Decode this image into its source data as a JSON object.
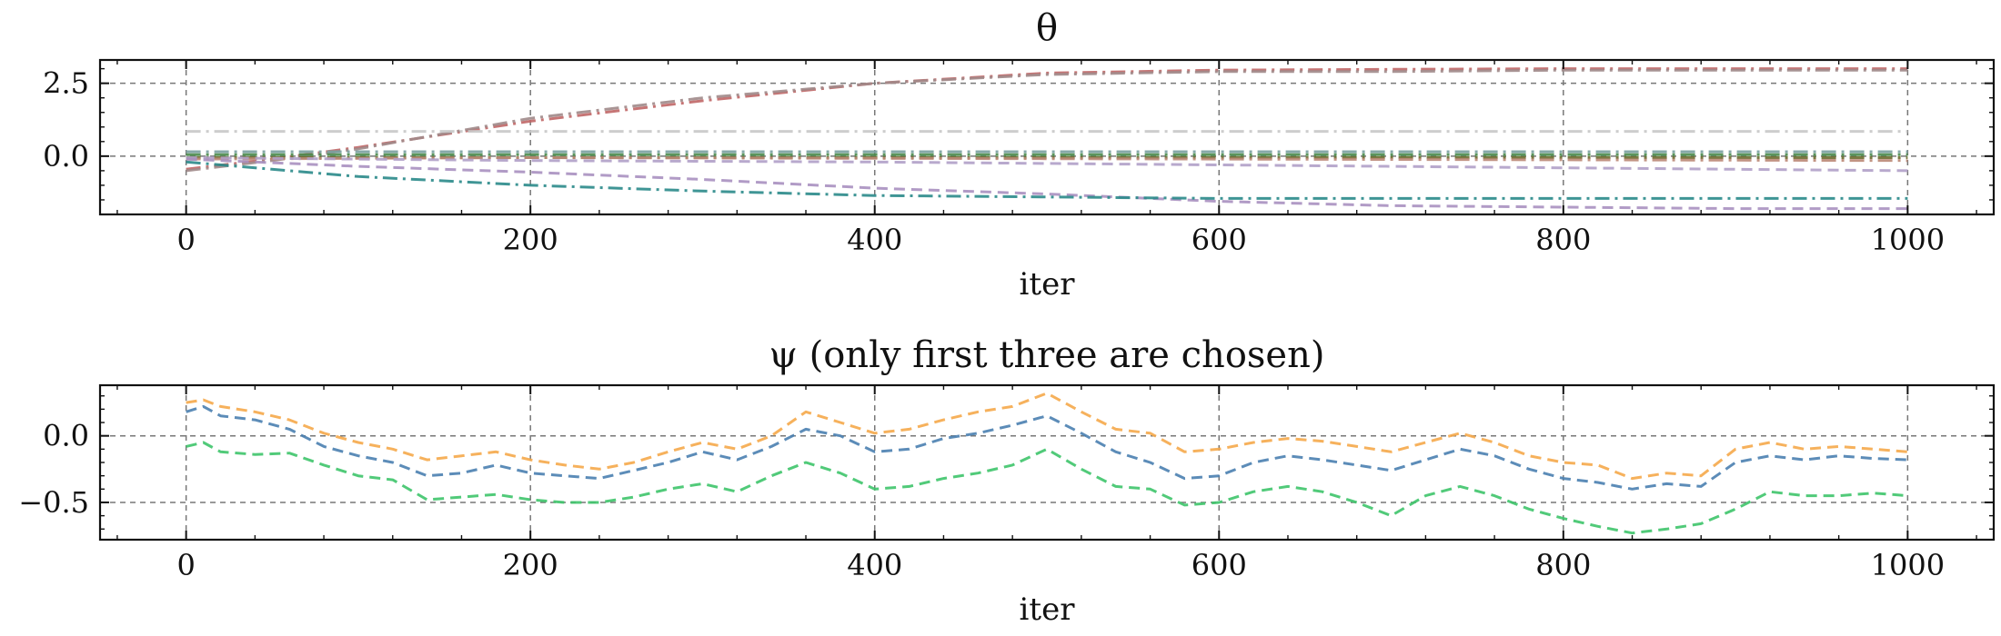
{
  "chart_data": [
    {
      "type": "line",
      "title": "θ",
      "xlabel": "iter",
      "ylabel": "",
      "xlim": [
        -50,
        1050
      ],
      "ylim": [
        -2.0,
        3.3
      ],
      "xticks": [
        0,
        200,
        400,
        600,
        800,
        1000
      ],
      "xtick_labels": [
        "0",
        "200",
        "400",
        "600",
        "800",
        "1000"
      ],
      "yticks": [
        0.0,
        2.5
      ],
      "ytick_labels": [
        "0.0",
        "2.5"
      ],
      "grid": true,
      "legend": "none",
      "series": [
        {
          "color": "#c06666",
          "style": "dashdot",
          "x": [
            0,
            50,
            100,
            200,
            300,
            400,
            500,
            600,
            700,
            800,
            900,
            1000
          ],
          "y": [
            -0.45,
            -0.1,
            0.3,
            1.2,
            1.9,
            2.5,
            2.85,
            2.95,
            2.98,
            3.0,
            3.0,
            3.0
          ]
        },
        {
          "color": "#a08a8a",
          "style": "dashdot",
          "x": [
            0,
            50,
            100,
            200,
            300,
            400,
            500,
            600,
            700,
            800,
            900,
            1000
          ],
          "y": [
            -0.5,
            -0.15,
            0.25,
            1.3,
            2.0,
            2.5,
            2.8,
            2.9,
            2.9,
            2.95,
            2.95,
            2.95
          ]
        },
        {
          "color": "#c8c8c8",
          "style": "dashdot",
          "x": [
            0,
            1000
          ],
          "y": [
            0.85,
            0.85
          ]
        },
        {
          "color": "#7aa0a0",
          "style": "dashdot",
          "x": [
            0,
            1000
          ],
          "y": [
            0.15,
            0.15
          ]
        },
        {
          "color": "#4a8a4a",
          "style": "dashdot",
          "x": [
            0,
            200,
            600,
            1000
          ],
          "y": [
            0.05,
            0.05,
            0.05,
            0.05
          ]
        },
        {
          "color": "#6b6b2f",
          "style": "dashdot",
          "x": [
            0,
            1000
          ],
          "y": [
            -0.05,
            -0.05
          ]
        },
        {
          "color": "#bb8877",
          "style": "dashdot",
          "x": [
            0,
            200,
            600,
            1000
          ],
          "y": [
            -0.1,
            -0.05,
            -0.1,
            -0.15
          ]
        },
        {
          "color": "#b0a0c8",
          "style": "dashed",
          "x": [
            0,
            100,
            200,
            400,
            600,
            800,
            1000
          ],
          "y": [
            -0.05,
            -0.1,
            -0.15,
            -0.2,
            -0.3,
            -0.4,
            -0.5
          ]
        },
        {
          "color": "#a890c0",
          "style": "dashed",
          "x": [
            0,
            100,
            200,
            300,
            400,
            500,
            600,
            700,
            800,
            900,
            1000
          ],
          "y": [
            -0.1,
            -0.35,
            -0.55,
            -0.8,
            -1.1,
            -1.3,
            -1.55,
            -1.7,
            -1.75,
            -1.8,
            -1.8
          ]
        },
        {
          "color": "#2a8a8a",
          "style": "dashdot",
          "x": [
            0,
            100,
            200,
            300,
            400,
            500,
            600,
            700,
            800,
            900,
            1000
          ],
          "y": [
            -0.2,
            -0.7,
            -1.0,
            -1.2,
            -1.35,
            -1.4,
            -1.45,
            -1.45,
            -1.45,
            -1.45,
            -1.45
          ]
        }
      ]
    },
    {
      "type": "line",
      "title": "ψ (only first three are chosen)",
      "xlabel": "iter",
      "ylabel": "",
      "xlim": [
        -50,
        1050
      ],
      "ylim": [
        -0.78,
        0.38
      ],
      "xticks": [
        0,
        200,
        400,
        600,
        800,
        1000
      ],
      "xtick_labels": [
        "0",
        "200",
        "400",
        "600",
        "800",
        "1000"
      ],
      "yticks": [
        -0.5,
        0.0
      ],
      "ytick_labels": [
        "−0.5",
        "0.0"
      ],
      "grid": true,
      "legend": "none",
      "series": [
        {
          "color": "#f5a84a",
          "style": "dashed",
          "x": [
            0,
            10,
            20,
            40,
            60,
            80,
            100,
            120,
            140,
            160,
            180,
            200,
            220,
            240,
            260,
            280,
            300,
            320,
            340,
            360,
            380,
            400,
            420,
            440,
            460,
            480,
            500,
            520,
            540,
            560,
            580,
            600,
            620,
            640,
            660,
            680,
            700,
            720,
            740,
            760,
            780,
            800,
            820,
            840,
            860,
            880,
            900,
            920,
            940,
            960,
            980,
            1000
          ],
          "y": [
            0.25,
            0.27,
            0.22,
            0.18,
            0.12,
            0.02,
            -0.05,
            -0.1,
            -0.18,
            -0.15,
            -0.12,
            -0.18,
            -0.22,
            -0.25,
            -0.2,
            -0.12,
            -0.05,
            -0.1,
            0.0,
            0.18,
            0.1,
            0.02,
            0.05,
            0.12,
            0.18,
            0.22,
            0.32,
            0.18,
            0.05,
            0.02,
            -0.12,
            -0.1,
            -0.05,
            -0.02,
            -0.04,
            -0.08,
            -0.12,
            -0.05,
            0.02,
            -0.05,
            -0.15,
            -0.2,
            -0.22,
            -0.32,
            -0.28,
            -0.3,
            -0.1,
            -0.05,
            -0.1,
            -0.08,
            -0.1,
            -0.12
          ]
        },
        {
          "color": "#4a80b0",
          "style": "dashed",
          "x": [
            0,
            10,
            20,
            40,
            60,
            80,
            100,
            120,
            140,
            160,
            180,
            200,
            220,
            240,
            260,
            280,
            300,
            320,
            340,
            360,
            380,
            400,
            420,
            440,
            460,
            480,
            500,
            520,
            540,
            560,
            580,
            600,
            620,
            640,
            660,
            680,
            700,
            720,
            740,
            760,
            780,
            800,
            820,
            840,
            860,
            880,
            900,
            920,
            940,
            960,
            980,
            1000
          ],
          "y": [
            0.18,
            0.22,
            0.15,
            0.12,
            0.05,
            -0.08,
            -0.15,
            -0.2,
            -0.3,
            -0.28,
            -0.22,
            -0.28,
            -0.3,
            -0.32,
            -0.26,
            -0.2,
            -0.12,
            -0.18,
            -0.08,
            0.05,
            0.0,
            -0.12,
            -0.1,
            -0.02,
            0.02,
            0.08,
            0.15,
            0.02,
            -0.12,
            -0.2,
            -0.32,
            -0.3,
            -0.2,
            -0.15,
            -0.18,
            -0.22,
            -0.26,
            -0.18,
            -0.1,
            -0.15,
            -0.25,
            -0.32,
            -0.35,
            -0.4,
            -0.36,
            -0.38,
            -0.2,
            -0.15,
            -0.18,
            -0.15,
            -0.17,
            -0.18
          ]
        },
        {
          "color": "#3ec46a",
          "style": "dashed",
          "x": [
            0,
            10,
            20,
            40,
            60,
            80,
            100,
            120,
            140,
            160,
            180,
            200,
            220,
            240,
            260,
            280,
            300,
            320,
            340,
            360,
            380,
            400,
            420,
            440,
            460,
            480,
            500,
            520,
            540,
            560,
            580,
            600,
            620,
            640,
            660,
            680,
            700,
            720,
            740,
            760,
            780,
            800,
            820,
            840,
            860,
            880,
            900,
            920,
            940,
            960,
            980,
            1000
          ],
          "y": [
            -0.08,
            -0.05,
            -0.12,
            -0.14,
            -0.13,
            -0.22,
            -0.3,
            -0.33,
            -0.48,
            -0.46,
            -0.44,
            -0.48,
            -0.5,
            -0.5,
            -0.46,
            -0.4,
            -0.36,
            -0.42,
            -0.3,
            -0.2,
            -0.28,
            -0.4,
            -0.38,
            -0.32,
            -0.28,
            -0.22,
            -0.1,
            -0.25,
            -0.38,
            -0.4,
            -0.52,
            -0.5,
            -0.42,
            -0.38,
            -0.42,
            -0.5,
            -0.6,
            -0.45,
            -0.38,
            -0.45,
            -0.55,
            -0.62,
            -0.68,
            -0.73,
            -0.7,
            -0.66,
            -0.55,
            -0.42,
            -0.45,
            -0.45,
            -0.43,
            -0.45
          ]
        }
      ]
    }
  ]
}
